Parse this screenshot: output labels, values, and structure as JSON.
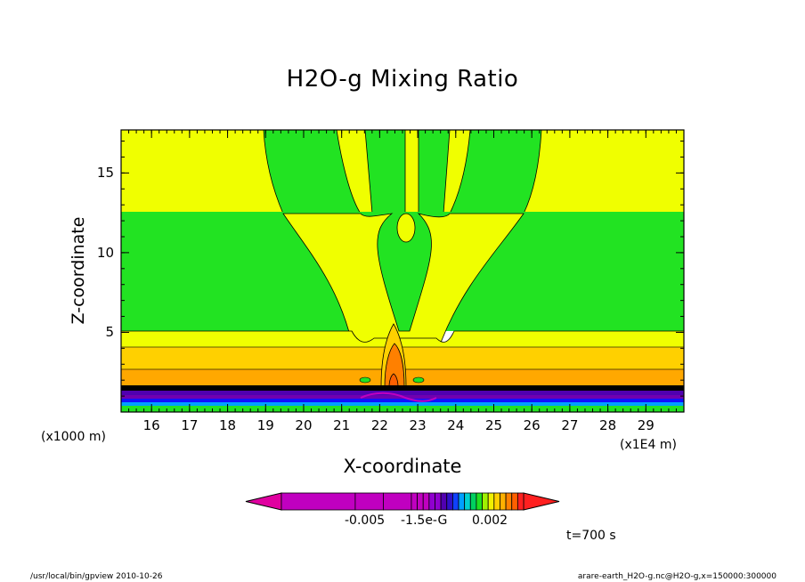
{
  "chart_data": {
    "type": "heatmap",
    "title": "H2O-g Mixing Ratio",
    "xlabel": "X-coordinate",
    "ylabel": "Z-coordinate",
    "x_unit_left": "(x1000 m)",
    "x_unit_right": "(x1E4 m)",
    "x_ticks": [
      "16",
      "17",
      "18",
      "19",
      "20",
      "21",
      "22",
      "23",
      "24",
      "25",
      "26",
      "27",
      "28",
      "29"
    ],
    "y_ticks": [
      "5",
      "10",
      "15"
    ],
    "xlim": [
      15.2,
      30.0
    ],
    "ylim": [
      0.0,
      17.7
    ],
    "colorbar_labels": [
      "-0.005",
      "-1.5e-G",
      "0.002"
    ],
    "colorbar_colors": [
      "#c000c0",
      "#c000c0",
      "#c000c0",
      "#c000c0",
      "#c000c0",
      "#c000c0",
      "#9000d0",
      "#9000d0",
      "#5000b0",
      "#3010c8",
      "#1040ff",
      "#00a0ff",
      "#00d0d0",
      "#00d060",
      "#20e020",
      "#a0f000",
      "#f0f000",
      "#ffd000",
      "#ffb000",
      "#ff8000",
      "#ff6000",
      "#ff2020"
    ],
    "time_label": "t=700 s",
    "colors": {
      "yellow": "#f0ff00",
      "green": "#22e322",
      "light_orange": "#ffd000",
      "orange": "#ffa800",
      "dark_orange": "#ff8000",
      "blue": "#1010ff",
      "purple": "#7000b0"
    }
  },
  "footer": {
    "left": "/usr/local/bin/gpview  2010-10-26",
    "right": "arare-earth_H2O-g.nc@H2O-g,x=150000:300000"
  }
}
